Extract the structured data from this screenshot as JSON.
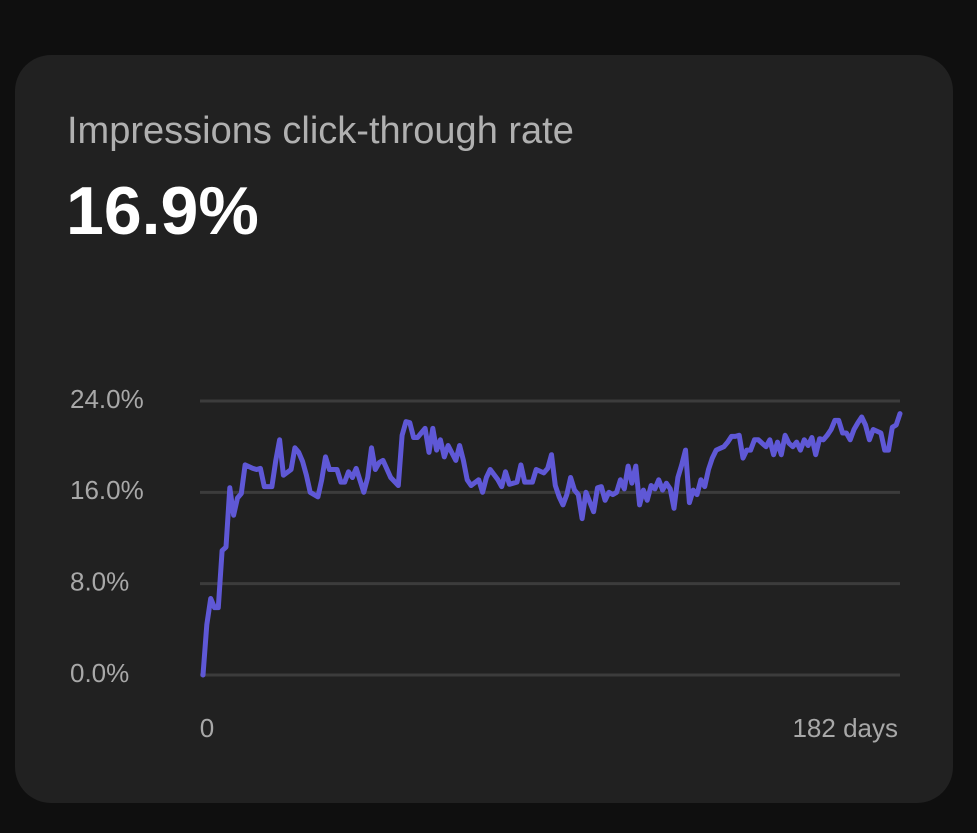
{
  "chart_data": {
    "type": "line",
    "title": "Impressions click-through rate",
    "headline": "16.9%",
    "x": [
      0,
      1,
      2,
      3,
      4,
      5,
      6,
      7,
      8,
      9,
      10,
      11,
      13,
      14,
      15,
      16,
      18,
      19,
      20,
      21,
      23,
      24,
      25,
      26,
      27,
      28,
      30,
      31,
      32,
      33,
      35,
      36,
      37,
      38,
      39,
      40,
      42,
      43,
      44,
      45,
      46,
      47,
      49,
      51,
      52,
      53,
      54,
      55,
      56,
      58,
      59,
      60,
      61,
      62,
      63,
      64,
      66,
      67,
      68,
      69,
      70,
      72,
      73,
      74,
      75,
      77,
      78,
      79,
      80,
      82,
      83,
      84,
      86,
      87,
      89,
      90,
      91,
      92,
      93,
      94,
      95,
      96,
      97,
      98,
      99,
      100,
      102,
      103,
      104,
      105,
      106,
      107,
      108,
      109,
      110,
      111,
      112,
      113,
      114,
      115,
      116,
      117,
      118,
      119,
      120,
      121,
      122,
      123,
      124,
      125,
      126,
      127,
      128,
      129,
      130,
      131,
      132,
      133,
      134,
      136,
      137,
      138,
      139,
      140,
      141,
      142,
      143,
      144,
      145,
      146,
      147,
      148,
      149,
      150,
      151,
      152,
      153,
      154,
      155,
      156,
      157,
      158,
      159,
      160,
      161,
      162,
      163,
      164,
      165,
      166,
      167,
      168,
      169,
      170,
      171,
      172,
      173,
      174,
      175,
      177,
      178,
      179,
      180,
      181,
      182
    ],
    "series": [
      {
        "name": "Impressions click-through rate",
        "color": "#5f58d6",
        "values": [
          0,
          4.4,
          6.7,
          5.9,
          5.9,
          10.9,
          11.2,
          16.4,
          14.0,
          15.5,
          15.9,
          18.4,
          18.1,
          18.0,
          18.1,
          16.5,
          16.5,
          18.8,
          20.6,
          17.5,
          18.0,
          19.9,
          19.5,
          18.7,
          17.5,
          16.0,
          15.6,
          17.1,
          19.1,
          18.0,
          18.0,
          16.9,
          16.9,
          17.8,
          17.3,
          18.1,
          16.0,
          17.3,
          19.9,
          18.0,
          18.6,
          18.8,
          17.3,
          16.6,
          21.0,
          22.2,
          22.1,
          20.8,
          20.8,
          21.6,
          19.5,
          21.6,
          19.7,
          20.6,
          19.1,
          20.1,
          18.8,
          20.1,
          18.8,
          17.1,
          16.6,
          17.1,
          16.0,
          17.3,
          18.0,
          17.1,
          16.5,
          17.8,
          16.7,
          16.9,
          18.4,
          16.9,
          16.9,
          18.0,
          17.7,
          18.1,
          19.3,
          16.6,
          15.6,
          14.9,
          15.8,
          17.3,
          16.2,
          15.8,
          13.7,
          16.0,
          14.3,
          16.4,
          16.5,
          15.3,
          16.0,
          15.8,
          16.0,
          17.1,
          16.3,
          18.3,
          16.8,
          18.3,
          14.9,
          16.2,
          15.3,
          16.6,
          16.3,
          17.1,
          16.2,
          16.8,
          16.3,
          14.6,
          17.3,
          18.4,
          19.7,
          15.1,
          16.2,
          15.8,
          17.1,
          16.5,
          18.0,
          19.0,
          19.7,
          20.0,
          20.4,
          20.9,
          20.9,
          21.0,
          19.0,
          19.7,
          19.7,
          20.6,
          20.6,
          20.3,
          20.0,
          20.6,
          19.3,
          20.4,
          19.3,
          21.0,
          20.3,
          20.0,
          20.4,
          19.7,
          20.6,
          20.1,
          20.8,
          19.3,
          20.7,
          20.6,
          21.0,
          21.5,
          22.3,
          22.3,
          21.2,
          21.2,
          20.6,
          21.5,
          22.1,
          22.6,
          21.9,
          20.6,
          21.5,
          21.2,
          19.7,
          19.7,
          21.7,
          21.9,
          22.9
        ]
      }
    ],
    "xlim": [
      0,
      182
    ],
    "xticks": [
      0,
      {
        "value": 182,
        "label": "182 days"
      }
    ],
    "ylim": [
      0,
      24
    ],
    "yticks": [
      {
        "value": 0,
        "label": "0.0%"
      },
      {
        "value": 8,
        "label": "8.0%"
      },
      {
        "value": 16,
        "label": "16.0%"
      },
      {
        "value": 24,
        "label": "24.0%"
      }
    ],
    "grid": true
  }
}
